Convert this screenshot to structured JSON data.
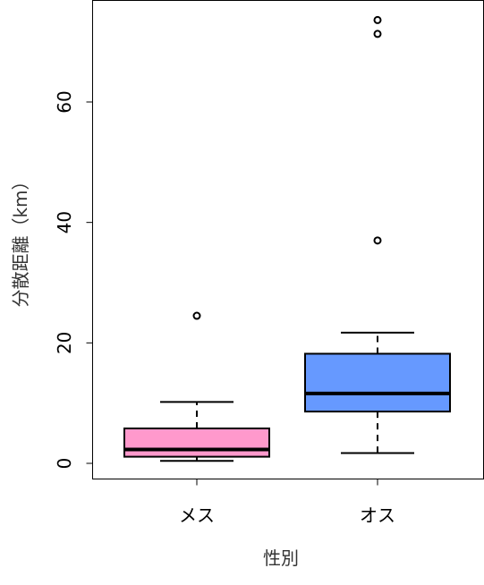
{
  "chart_data": {
    "type": "boxplot",
    "title": "",
    "xlabel": "性別",
    "ylabel": "分散距離（km）",
    "ylim": [
      -2.5,
      77
    ],
    "yticks": [
      0,
      20,
      40,
      60
    ],
    "grid": false,
    "legend": "none",
    "categories": [
      "メス",
      "オス"
    ],
    "series": [
      {
        "category": "メス",
        "color": "#ff99cc",
        "whisker_low": 0.4,
        "q1": 1.1,
        "median": 2.3,
        "q3": 5.8,
        "whisker_high": 10.2,
        "outliers": [
          24.5
        ]
      },
      {
        "category": "オス",
        "color": "#6699ff",
        "whisker_low": 1.7,
        "q1": 8.6,
        "median": 11.6,
        "q3": 18.2,
        "whisker_high": 21.7,
        "outliers": [
          37.0,
          71.3,
          73.6
        ]
      }
    ]
  }
}
